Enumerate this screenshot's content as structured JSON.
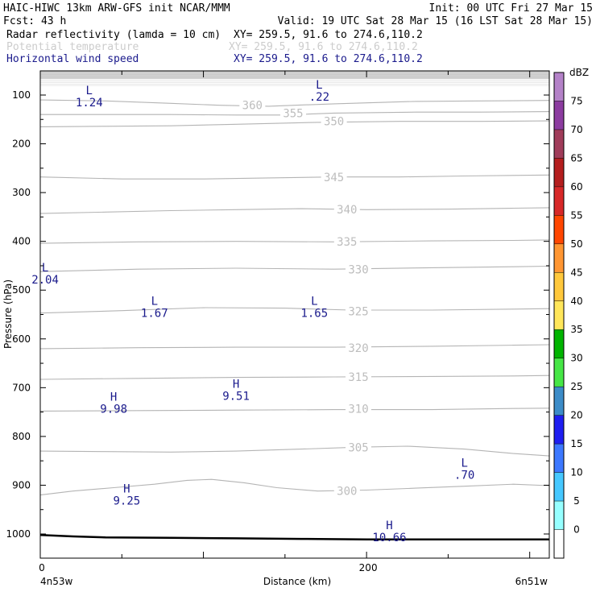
{
  "header": {
    "line1_left": "HAIC-HIWC 13km ARW-GFS init   NCAR/MMM",
    "line1_right": "Init: 00 UTC Fri 27 Mar 15",
    "line2_left": "Fcst:   43 h",
    "line2_right": "Valid: 19 UTC Sat 28 Mar 15 (16 LST Sat 28 Mar 15)",
    "fields": [
      {
        "name": "Radar reflectivity (lamda = 10 cm)",
        "xy": "XY= 259.5, 91.6 to 274.6,110.2",
        "color": "#000000"
      },
      {
        "name": "Potential temperature",
        "xy": "XY= 259.5, 91.6 to 274.6,110.2",
        "color": "#cccccc"
      },
      {
        "name": "Horizontal wind speed",
        "xy": "XY= 259.5, 91.6 to 274.6,110.2",
        "color": "#1a1a8c"
      }
    ]
  },
  "chart_data": {
    "type": "line",
    "ylabel": "Pressure (hPa)",
    "xlabel": "Distance (km)",
    "x_left_label": "4n53w",
    "x_right_label": "6n51w",
    "xlim": [
      0,
      312
    ],
    "ylim": [
      1050,
      50
    ],
    "y_ticks": [
      "100",
      "200",
      "300",
      "400",
      "500",
      "600",
      "700",
      "800",
      "900",
      "1000"
    ],
    "x_ticks": [
      "0",
      "200"
    ],
    "theta_contours": [
      {
        "label": "300",
        "label_x": 188,
        "label_p": 913,
        "color": "#b4b4b4",
        "points": [
          [
            0,
            920
          ],
          [
            20,
            912
          ],
          [
            45,
            905
          ],
          [
            70,
            898
          ],
          [
            90,
            890
          ],
          [
            105,
            888
          ],
          [
            125,
            895
          ],
          [
            145,
            905
          ],
          [
            170,
            912
          ],
          [
            200,
            910
          ],
          [
            230,
            906
          ],
          [
            260,
            902
          ],
          [
            290,
            898
          ],
          [
            312,
            901
          ]
        ]
      },
      {
        "label": "305",
        "label_x": 195,
        "label_p": 824,
        "color": "#b4b4b4",
        "points": [
          [
            0,
            830
          ],
          [
            40,
            831
          ],
          [
            80,
            832
          ],
          [
            120,
            830
          ],
          [
            160,
            826
          ],
          [
            195,
            822
          ],
          [
            225,
            820
          ],
          [
            260,
            826
          ],
          [
            290,
            835
          ],
          [
            312,
            840
          ]
        ]
      },
      {
        "label": "310",
        "label_x": 195,
        "label_p": 745,
        "color": "#b4b4b4",
        "points": [
          [
            0,
            748
          ],
          [
            60,
            747
          ],
          [
            120,
            746
          ],
          [
            180,
            745
          ],
          [
            240,
            745
          ],
          [
            280,
            743
          ],
          [
            312,
            742
          ]
        ]
      },
      {
        "label": "315",
        "label_x": 195,
        "label_p": 680,
        "color": "#b4b4b4",
        "points": [
          [
            0,
            683
          ],
          [
            60,
            681
          ],
          [
            120,
            679
          ],
          [
            180,
            678
          ],
          [
            240,
            677
          ],
          [
            290,
            676
          ],
          [
            312,
            675
          ]
        ]
      },
      {
        "label": "320",
        "label_x": 195,
        "label_p": 620,
        "color": "#b4b4b4",
        "points": [
          [
            0,
            620
          ],
          [
            60,
            618
          ],
          [
            120,
            617
          ],
          [
            180,
            617
          ],
          [
            240,
            615
          ],
          [
            290,
            613
          ],
          [
            312,
            612
          ]
        ]
      },
      {
        "label": "325",
        "label_x": 195,
        "label_p": 545,
        "color": "#b4b4b4",
        "points": [
          [
            0,
            547
          ],
          [
            50,
            542
          ],
          [
            100,
            536
          ],
          [
            150,
            537
          ],
          [
            190,
            541
          ],
          [
            240,
            541
          ],
          [
            290,
            539
          ],
          [
            312,
            538
          ]
        ]
      },
      {
        "label": "330",
        "label_x": 195,
        "label_p": 459,
        "color": "#b4b4b4",
        "points": [
          [
            0,
            462
          ],
          [
            60,
            457
          ],
          [
            120,
            455
          ],
          [
            180,
            457
          ],
          [
            240,
            454
          ],
          [
            290,
            452
          ],
          [
            312,
            451
          ]
        ]
      },
      {
        "label": "335",
        "label_x": 188,
        "label_p": 402,
        "color": "#b4b4b4",
        "points": [
          [
            0,
            404
          ],
          [
            60,
            401
          ],
          [
            120,
            400
          ],
          [
            180,
            401
          ],
          [
            240,
            399
          ],
          [
            290,
            398
          ],
          [
            312,
            397
          ]
        ]
      },
      {
        "label": "340",
        "label_x": 188,
        "label_p": 336,
        "color": "#b4b4b4",
        "points": [
          [
            0,
            343
          ],
          [
            40,
            340
          ],
          [
            80,
            337
          ],
          [
            120,
            335
          ],
          [
            160,
            333
          ],
          [
            200,
            335
          ],
          [
            250,
            334
          ],
          [
            290,
            332
          ],
          [
            312,
            331
          ]
        ]
      },
      {
        "label": "345",
        "label_x": 180,
        "label_p": 270,
        "color": "#b4b4b4",
        "points": [
          [
            0,
            268
          ],
          [
            50,
            272
          ],
          [
            100,
            272
          ],
          [
            140,
            270
          ],
          [
            180,
            268
          ],
          [
            220,
            268
          ],
          [
            260,
            266
          ],
          [
            312,
            264
          ]
        ]
      },
      {
        "label": "350",
        "label_x": 180,
        "label_p": 155,
        "color": "#b4b4b4",
        "points": [
          [
            0,
            165
          ],
          [
            40,
            164
          ],
          [
            80,
            163
          ],
          [
            120,
            160
          ],
          [
            170,
            156
          ],
          [
            220,
            154
          ],
          [
            270,
            154
          ],
          [
            312,
            153
          ]
        ]
      },
      {
        "label": "355",
        "label_x": 155,
        "label_p": 139,
        "color": "#b4b4b4",
        "points": [
          [
            0,
            140
          ],
          [
            40,
            140
          ],
          [
            80,
            140
          ],
          [
            120,
            141
          ],
          [
            150,
            141
          ],
          [
            180,
            137
          ],
          [
            230,
            135
          ],
          [
            270,
            135
          ],
          [
            312,
            134
          ]
        ]
      },
      {
        "label": "360",
        "label_x": 130,
        "label_p": 122,
        "color": "#b4b4b4",
        "points": [
          [
            0,
            110
          ],
          [
            40,
            112
          ],
          [
            80,
            117
          ],
          [
            110,
            121
          ],
          [
            140,
            123
          ],
          [
            180,
            118
          ],
          [
            230,
            113
          ],
          [
            270,
            112
          ],
          [
            312,
            111
          ]
        ]
      }
    ],
    "wind_extrema": [
      {
        "type": "L",
        "value": "1.24",
        "x": 30,
        "p": 98
      },
      {
        "type": "L",
        "value": ".22",
        "x": 171,
        "p": 87
      },
      {
        "type": "L",
        "value": "2.04",
        "x": 3,
        "p": 462
      },
      {
        "type": "L",
        "value": "1.67",
        "x": 70,
        "p": 530
      },
      {
        "type": "L",
        "value": "1.65",
        "x": 168,
        "p": 530
      },
      {
        "type": "H",
        "value": "9.51",
        "x": 120,
        "p": 700
      },
      {
        "type": "H",
        "value": "9.98",
        "x": 45,
        "p": 727
      },
      {
        "type": "L",
        "value": ".70",
        "x": 260,
        "p": 862
      },
      {
        "type": "H",
        "value": "9.25",
        "x": 53,
        "p": 915
      },
      {
        "type": "H",
        "value": "10.66",
        "x": 214,
        "p": 990
      }
    ],
    "terrain": {
      "color": "#000000",
      "points": [
        [
          0,
          1002
        ],
        [
          20,
          1005
        ],
        [
          40,
          1007
        ],
        [
          80,
          1008
        ],
        [
          120,
          1009
        ],
        [
          160,
          1010
        ],
        [
          200,
          1011
        ],
        [
          240,
          1011
        ],
        [
          280,
          1011
        ],
        [
          312,
          1011
        ]
      ]
    },
    "colorbar": {
      "unit": "dBZ",
      "levels": [
        "0",
        "5",
        "10",
        "15",
        "20",
        "25",
        "30",
        "35",
        "40",
        "45",
        "50",
        "55",
        "60",
        "65",
        "70",
        "75"
      ],
      "colors": [
        "#ffffff",
        "#96ffff",
        "#46c8ff",
        "#3c78ff",
        "#1e1ef0",
        "#3c8cc8",
        "#46e646",
        "#00b400",
        "#ffe65a",
        "#ffc83c",
        "#ff9632",
        "#ff4600",
        "#d72828",
        "#b41e1e",
        "#a03c5a",
        "#8c3ca0",
        "#b482c8"
      ]
    },
    "top_fill": {
      "p_from": 50,
      "p_to": 67,
      "color": "#c8c8c8"
    }
  }
}
